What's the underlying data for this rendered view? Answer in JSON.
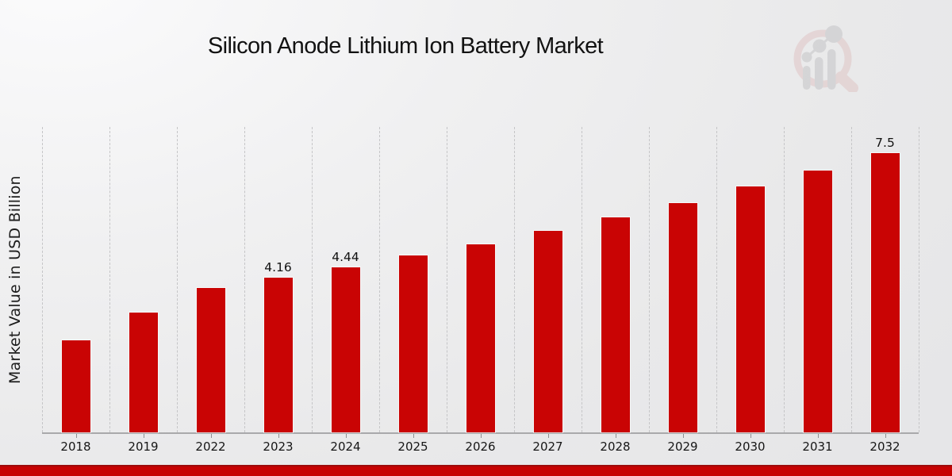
{
  "page": {
    "title": "Silicon Anode Lithium Ion Battery Market"
  },
  "branding": {
    "logo_icon": "magnifier-bar-chart-logo",
    "logo_ring_color": "#e0c7c7",
    "logo_glyph_color": "#c6c6c8",
    "banner_color": "#c70202",
    "banner_edge_color": "#9d0b0b"
  },
  "chart_data": {
    "type": "bar",
    "title": "Silicon Anode Lithium Ion Battery Market",
    "xlabel": "",
    "ylabel": "Market Value in USD Billion",
    "categories": [
      "2018",
      "2019",
      "2022",
      "2023",
      "2024",
      "2025",
      "2026",
      "2027",
      "2028",
      "2029",
      "2030",
      "2031",
      "2032"
    ],
    "values": [
      2.48,
      3.21,
      3.88,
      4.16,
      4.44,
      4.75,
      5.05,
      5.41,
      5.78,
      6.16,
      6.6,
      7.03,
      7.5
    ],
    "data_labels": [
      "",
      "",
      "",
      "4.16",
      "4.44",
      "",
      "",
      "",
      "",
      "",
      "",
      "",
      "7.5"
    ],
    "bar_color": "#c90404",
    "ylim": [
      0,
      8.2
    ],
    "grid": "vertical-dashed",
    "grid_color": "#c5c5c7",
    "axis_color": "#a9a9ab",
    "legend": "none"
  }
}
